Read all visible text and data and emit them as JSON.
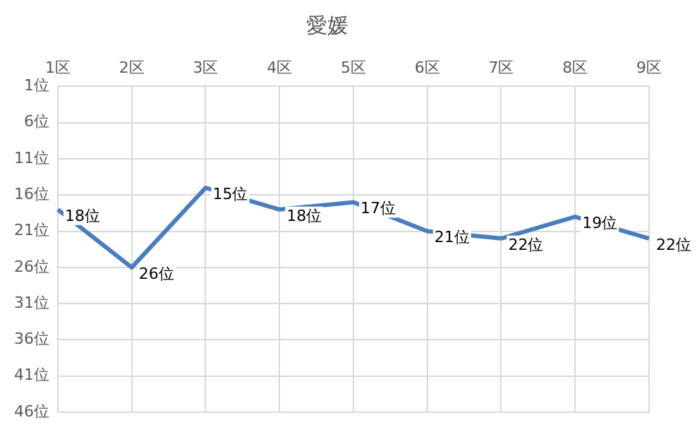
{
  "chart_data": {
    "type": "line",
    "title": "愛媛",
    "categories": [
      "1区",
      "2区",
      "3区",
      "4区",
      "5区",
      "6区",
      "7区",
      "8区",
      "9区"
    ],
    "series": [
      {
        "color": "#4a7ebb",
        "values": [
          18,
          26,
          15,
          18,
          17,
          21,
          22,
          19,
          22
        ],
        "value_labels": [
          "18位",
          "26位",
          "15位",
          "18位",
          "17位",
          "21位",
          "22位",
          "19位",
          "22位"
        ]
      }
    ],
    "ylim": [
      46,
      1
    ],
    "yticks": [
      {
        "value": 1,
        "label": "1位"
      },
      {
        "value": 6,
        "label": "6位"
      },
      {
        "value": 11,
        "label": "11位"
      },
      {
        "value": 16,
        "label": "16位"
      },
      {
        "value": 21,
        "label": "21位"
      },
      {
        "value": 26,
        "label": "26位"
      },
      {
        "value": 31,
        "label": "31位"
      },
      {
        "value": 36,
        "label": "36位"
      },
      {
        "value": 41,
        "label": "41位"
      },
      {
        "value": 46,
        "label": "46位"
      }
    ],
    "grid": true,
    "legend": false,
    "marker": "none",
    "line_style": "solid"
  }
}
